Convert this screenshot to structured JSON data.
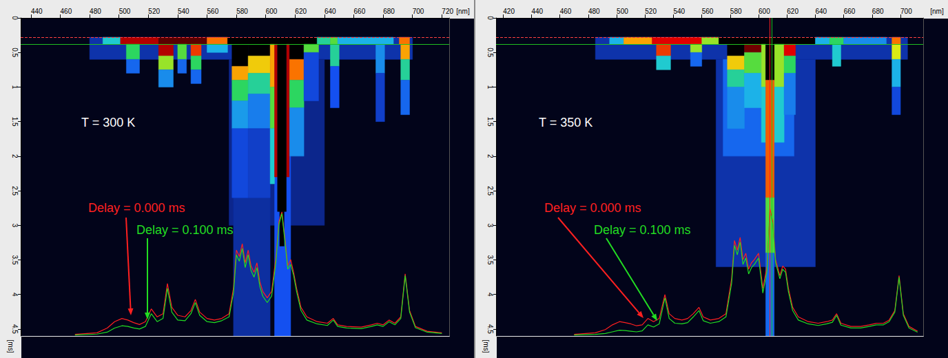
{
  "chart_data": [
    {
      "type": "heatmap",
      "annotation": "T = 300 K",
      "x_label": "[nm]",
      "y_label": "[ms]",
      "xlim": [
        433,
        725
      ],
      "xticks": [
        440,
        460,
        480,
        500,
        520,
        540,
        560,
        580,
        600,
        620,
        640,
        660,
        680,
        700,
        720
      ],
      "ylim": [
        0,
        4.6
      ],
      "yticks": [
        0,
        0.5,
        1,
        1.5,
        2,
        2.5,
        3,
        3.5,
        4,
        4.5
      ],
      "y2lim": [
        0,
        100
      ],
      "y2ticks": [],
      "color_range": [
        0,
        100
      ],
      "cells": [
        [
          480,
          700,
          0.28,
          0.6,
          15
        ],
        [
          575,
          640,
          0.6,
          3.0,
          12
        ],
        [
          578,
          603,
          0.6,
          4.6,
          14
        ],
        [
          606,
          617,
          0.6,
          4.6,
          22
        ],
        [
          489,
          501,
          0.28,
          0.38,
          40
        ],
        [
          501,
          527,
          0.28,
          0.38,
          92
        ],
        [
          527,
          560,
          0.28,
          0.38,
          96
        ],
        [
          560,
          574,
          0.28,
          0.38,
          80
        ],
        [
          574,
          635,
          0.28,
          0.38,
          100
        ],
        [
          635,
          644,
          0.28,
          0.38,
          45
        ],
        [
          644,
          649,
          0.28,
          0.38,
          55
        ],
        [
          649,
          687,
          0.28,
          0.38,
          35
        ],
        [
          691,
          698,
          0.28,
          0.38,
          80
        ],
        [
          505,
          514,
          0.38,
          0.6,
          50
        ],
        [
          505,
          514,
          0.6,
          0.8,
          25
        ],
        [
          527,
          537,
          0.38,
          0.55,
          92
        ],
        [
          527,
          537,
          0.55,
          0.75,
          60
        ],
        [
          527,
          537,
          0.75,
          1.0,
          30
        ],
        [
          540,
          546,
          0.38,
          0.6,
          55
        ],
        [
          540,
          546,
          0.6,
          0.8,
          25
        ],
        [
          549,
          556,
          0.38,
          0.55,
          85
        ],
        [
          549,
          556,
          0.55,
          0.75,
          50
        ],
        [
          549,
          556,
          0.75,
          0.95,
          25
        ],
        [
          560,
          574,
          0.38,
          0.5,
          35
        ],
        [
          577,
          588,
          0.38,
          0.7,
          100
        ],
        [
          577,
          588,
          0.7,
          0.9,
          75
        ],
        [
          577,
          588,
          0.9,
          1.2,
          50
        ],
        [
          577,
          588,
          1.2,
          1.6,
          32
        ],
        [
          577,
          588,
          1.6,
          2.6,
          20
        ],
        [
          588,
          603,
          0.38,
          0.55,
          100
        ],
        [
          588,
          603,
          0.55,
          0.8,
          70
        ],
        [
          588,
          603,
          0.8,
          1.1,
          45
        ],
        [
          588,
          603,
          1.1,
          1.6,
          28
        ],
        [
          588,
          603,
          1.6,
          2.6,
          18
        ],
        [
          603,
          606,
          0.38,
          1.0,
          75
        ],
        [
          603,
          606,
          1.0,
          1.6,
          55
        ],
        [
          603,
          606,
          1.6,
          2.4,
          40
        ],
        [
          616,
          626,
          0.38,
          0.6,
          100
        ],
        [
          616,
          626,
          0.6,
          0.9,
          80
        ],
        [
          616,
          626,
          0.9,
          1.3,
          50
        ],
        [
          616,
          626,
          1.3,
          2.0,
          30
        ],
        [
          606,
          608,
          0.38,
          2.3,
          92
        ],
        [
          614,
          616,
          0.38,
          2.3,
          92
        ],
        [
          608,
          614,
          0.38,
          2.8,
          100
        ],
        [
          609.5,
          612.5,
          2.8,
          3.3,
          100
        ],
        [
          626,
          636,
          0.38,
          0.5,
          55
        ],
        [
          626,
          636,
          0.5,
          1.2,
          20
        ],
        [
          644,
          650,
          0.38,
          0.7,
          45
        ],
        [
          644,
          650,
          0.7,
          1.3,
          22
        ],
        [
          675,
          681,
          0.38,
          0.8,
          30
        ],
        [
          675,
          681,
          0.8,
          1.5,
          18
        ],
        [
          692,
          698,
          0.38,
          0.6,
          75
        ],
        [
          692,
          698,
          0.6,
          0.9,
          45
        ],
        [
          692,
          698,
          0.9,
          1.4,
          25
        ]
      ],
      "cursors": [
        {
          "time": 0.28,
          "color": "#ff4040",
          "line_style": "dashed"
        },
        {
          "time": 0.38,
          "color": "#20c020",
          "line_style": "solid"
        }
      ],
      "x": [
        470,
        485,
        492,
        497,
        502,
        506,
        510,
        514,
        518,
        522,
        526,
        530,
        533,
        536,
        540,
        545,
        549,
        552,
        555,
        560,
        565,
        570,
        575,
        578,
        580,
        582,
        584,
        586,
        588,
        590,
        592,
        594,
        596,
        598,
        601,
        604,
        607,
        609,
        611,
        613,
        615,
        617,
        619,
        621,
        624,
        628,
        635,
        642,
        646,
        649,
        655,
        665,
        672,
        676,
        680,
        684,
        688,
        692,
        695,
        698,
        702,
        710,
        720
      ],
      "series": [
        {
          "name": "Delay = 0.000 ms",
          "color": "#ff2020",
          "type": "line",
          "axis": "y2",
          "values": [
            0.5,
            1,
            2.5,
            4.5,
            5.5,
            5,
            4.2,
            3.6,
            4.5,
            8.5,
            6,
            7,
            16.5,
            9,
            6.5,
            6,
            8,
            11.5,
            7.5,
            5.5,
            5,
            5.5,
            7,
            15,
            27,
            25,
            29,
            23,
            27,
            22,
            20,
            23,
            17,
            14,
            12,
            14,
            25,
            36,
            39,
            31,
            22,
            24,
            20,
            15,
            9,
            6,
            4.5,
            4,
            5.5,
            3.5,
            3,
            2.8,
            3.5,
            4,
            3.5,
            5,
            4,
            6,
            19.5,
            8,
            3,
            1.5,
            1
          ]
        },
        {
          "name": "Delay = 0.100 ms",
          "color": "#22dd22",
          "type": "line",
          "axis": "y2",
          "values": [
            0.3,
            0.6,
            1.2,
            2.5,
            3.2,
            3,
            2.5,
            2.2,
            3,
            7,
            4.5,
            5.5,
            15,
            7.5,
            5,
            4.8,
            7,
            10.5,
            6.5,
            4.5,
            4.2,
            4.8,
            6,
            13.5,
            25.5,
            23.5,
            27.5,
            21.5,
            25.5,
            20.5,
            18.5,
            21.5,
            15.5,
            12.5,
            10.5,
            12.5,
            23.5,
            35,
            38.5,
            30,
            21,
            22.5,
            19,
            14,
            8,
            5,
            3.8,
            3.3,
            5,
            3,
            2.5,
            2.3,
            3,
            3.5,
            3,
            4.5,
            3.5,
            5.5,
            19,
            7.5,
            2.6,
            1.2,
            0.8
          ]
        }
      ]
    },
    {
      "type": "heatmap",
      "annotation": "T = 350 K",
      "x_label": "[nm]",
      "y_label": "[ms]",
      "xlim": [
        415,
        716
      ],
      "xticks": [
        420,
        440,
        460,
        480,
        500,
        520,
        540,
        560,
        580,
        600,
        620,
        640,
        660,
        680,
        700
      ],
      "ylim": [
        0,
        4.6
      ],
      "yticks": [
        0,
        0.5,
        1,
        1.5,
        2,
        2.5,
        3,
        3.5,
        4,
        4.5
      ],
      "y2lim": [
        0,
        100
      ],
      "y2ticks": [],
      "color_range": [
        0,
        100
      ],
      "cells": [
        [
          485,
          705,
          0.28,
          0.6,
          15
        ],
        [
          570,
          640,
          0.6,
          3.6,
          15
        ],
        [
          575,
          625,
          0.6,
          2.0,
          25
        ],
        [
          495,
          505,
          0.28,
          0.38,
          35
        ],
        [
          505,
          525,
          0.28,
          0.38,
          75
        ],
        [
          525,
          560,
          0.28,
          0.38,
          90
        ],
        [
          560,
          572,
          0.28,
          0.38,
          60
        ],
        [
          572,
          640,
          0.28,
          0.38,
          100
        ],
        [
          640,
          650,
          0.28,
          0.38,
          35
        ],
        [
          650,
          660,
          0.28,
          0.38,
          50
        ],
        [
          660,
          690,
          0.28,
          0.38,
          30
        ],
        [
          694,
          700,
          0.28,
          0.38,
          80
        ],
        [
          528,
          538,
          0.38,
          0.55,
          85
        ],
        [
          528,
          538,
          0.55,
          0.75,
          40
        ],
        [
          552,
          560,
          0.38,
          0.5,
          60
        ],
        [
          552,
          560,
          0.5,
          0.7,
          25
        ],
        [
          578,
          590,
          0.38,
          0.55,
          100
        ],
        [
          578,
          590,
          0.55,
          0.75,
          70
        ],
        [
          578,
          590,
          0.75,
          1.0,
          45
        ],
        [
          578,
          590,
          1.0,
          1.6,
          30
        ],
        [
          590,
          602,
          0.38,
          0.5,
          95
        ],
        [
          590,
          602,
          0.5,
          0.8,
          55
        ],
        [
          590,
          602,
          0.8,
          1.3,
          35
        ],
        [
          602,
          605,
          0.38,
          1.0,
          60
        ],
        [
          602,
          605,
          1.0,
          1.8,
          40
        ],
        [
          611,
          618,
          0.38,
          1.0,
          60
        ],
        [
          611,
          618,
          1.0,
          1.8,
          40
        ],
        [
          605,
          611,
          0.38,
          0.9,
          100
        ],
        [
          605,
          611,
          0.9,
          2.6,
          82
        ],
        [
          605,
          611,
          2.6,
          3.4,
          55
        ],
        [
          605,
          611,
          3.4,
          4.6,
          25
        ],
        [
          618,
          626,
          0.38,
          0.55,
          90
        ],
        [
          618,
          626,
          0.55,
          0.8,
          50
        ],
        [
          618,
          626,
          0.8,
          1.4,
          28
        ],
        [
          652,
          658,
          0.38,
          0.7,
          40
        ],
        [
          694,
          700,
          0.38,
          0.6,
          65
        ],
        [
          694,
          700,
          0.6,
          1.0,
          35
        ],
        [
          694,
          700,
          1.0,
          1.4,
          20
        ]
      ],
      "cursors": [
        {
          "time": 0.28,
          "color": "#ff4040",
          "line_style": "dashed"
        },
        {
          "time": 0.38,
          "color": "#20c020",
          "line_style": "solid"
        },
        {
          "wavelength": 608,
          "color": "#ff2020",
          "line_style": "solid"
        },
        {
          "wavelength": 609.5,
          "color": "#20c020",
          "line_style": "solid"
        }
      ],
      "x": [
        470,
        485,
        492,
        497,
        502,
        506,
        510,
        514,
        518,
        522,
        526,
        530,
        534,
        537,
        541,
        546,
        550,
        554,
        558,
        561,
        566,
        572,
        577,
        581,
        583,
        585,
        587,
        589,
        591,
        593,
        595,
        597,
        600,
        603,
        606,
        608,
        610,
        612,
        615,
        617,
        619,
        621,
        624,
        628,
        635,
        642,
        648,
        652,
        655,
        658,
        665,
        672,
        678,
        683,
        688,
        692,
        696,
        699,
        702,
        706,
        712
      ],
      "series": [
        {
          "name": "Delay = 0.000 ms",
          "color": "#ff2020",
          "type": "line",
          "axis": "y2",
          "values": [
            0.5,
            1,
            2,
            3.5,
            4.5,
            4.2,
            3.8,
            3.2,
            3.5,
            5.5,
            4.5,
            5.5,
            13,
            7,
            5.5,
            5,
            5.5,
            7,
            9,
            6,
            5,
            5.5,
            7,
            18,
            30,
            27,
            31,
            24,
            26,
            21,
            23,
            24,
            26,
            15,
            22,
            40,
            36,
            24,
            19,
            22,
            21,
            15,
            9,
            6,
            4.5,
            4,
            4.5,
            5,
            7,
            4,
            3,
            3,
            3.5,
            4,
            4,
            5,
            8,
            19,
            7,
            3,
            1.5
          ]
        },
        {
          "name": "Delay = 0.100 ms",
          "color": "#22dd22",
          "type": "line",
          "axis": "y2",
          "values": [
            0.3,
            0.5,
            0.8,
            1.3,
            1.8,
            1.7,
            1.5,
            1.3,
            1.6,
            3.5,
            2.8,
            3.8,
            12,
            5.5,
            4,
            3.8,
            4.2,
            6,
            8,
            4.8,
            4,
            4.5,
            6,
            16.5,
            28.5,
            25.5,
            29.5,
            22.5,
            24.5,
            19.5,
            21.5,
            22.5,
            24.5,
            13.5,
            20.5,
            39,
            35,
            23,
            18,
            21,
            20,
            14,
            8,
            5,
            3.8,
            3.3,
            3.8,
            4.3,
            6.5,
            3.4,
            2.5,
            2.5,
            3,
            3.5,
            3.5,
            4.5,
            7.5,
            18.5,
            6.5,
            2.5,
            1.2
          ]
        }
      ]
    }
  ]
}
